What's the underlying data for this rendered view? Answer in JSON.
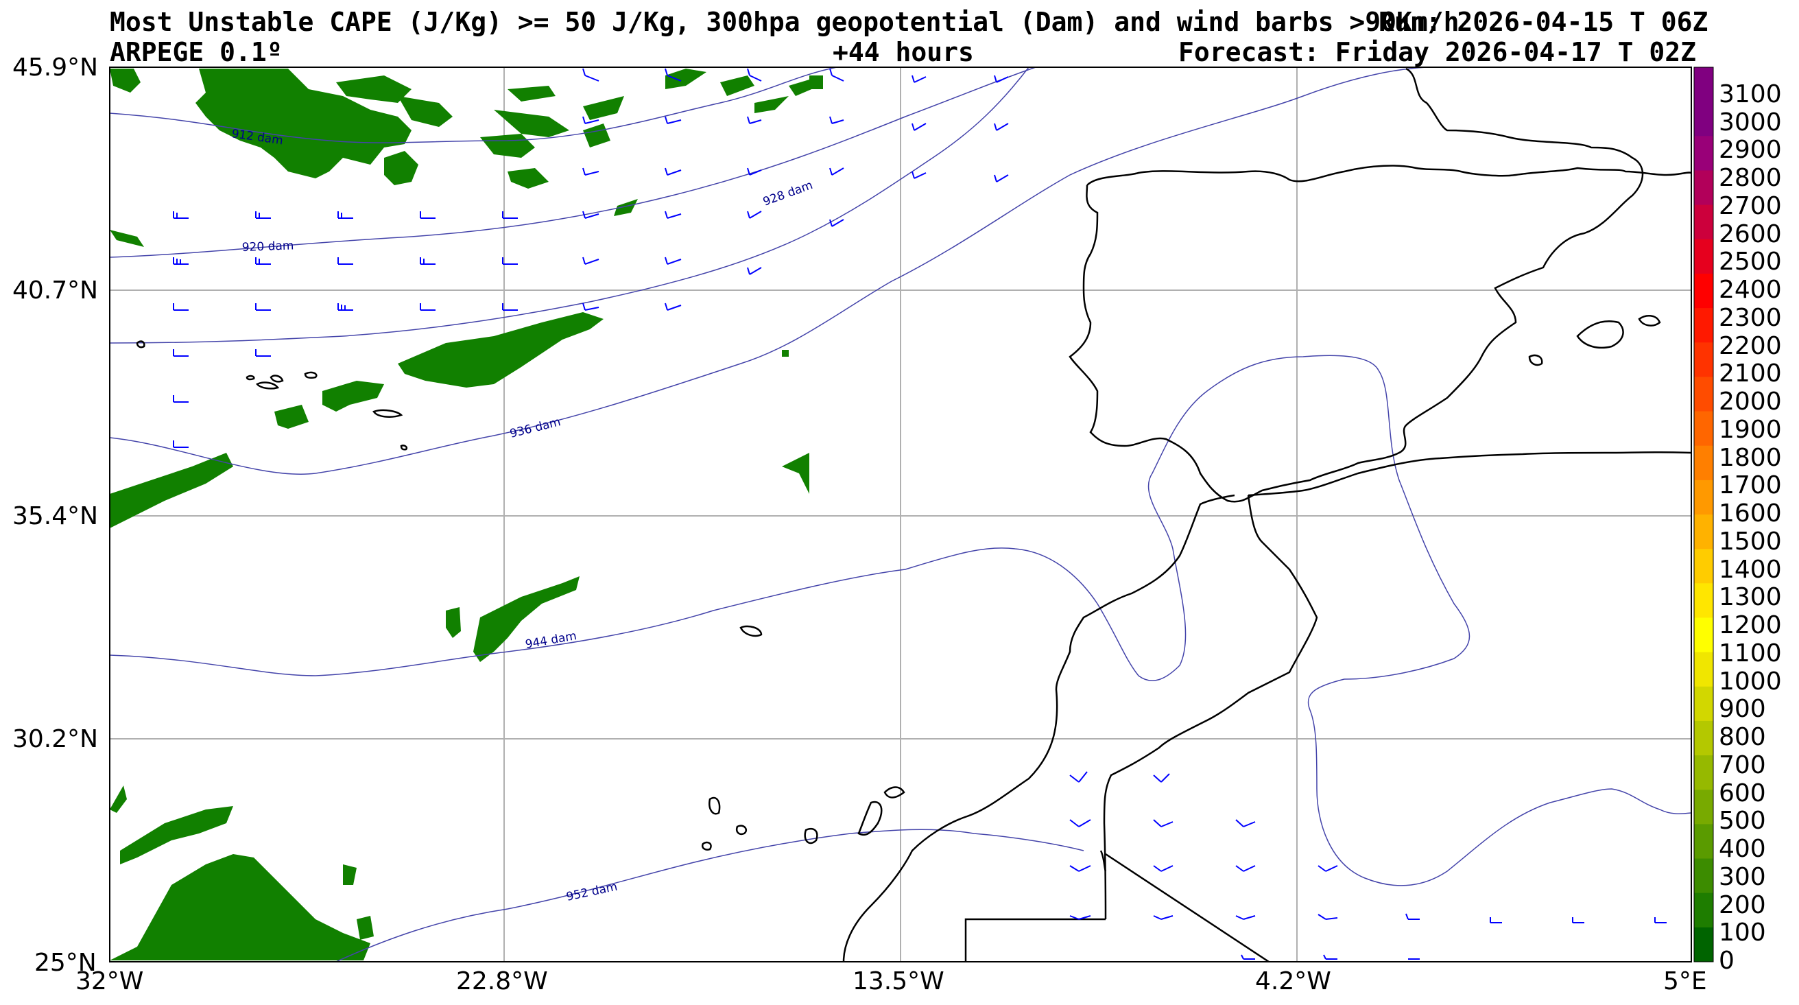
{
  "header": {
    "title": "Most Unstable CAPE (J/Kg) >= 50 J/Kg, 300hpa geopotential (Dam) and wind barbs >90Km/h",
    "run": "Run: 2026-04-15 T 06Z",
    "model": "ARPEGE 0.1º",
    "lead": "+44 hours",
    "forecast": "Forecast: Friday 2026-04-17 T 02Z"
  },
  "axes": {
    "lat_labels": [
      "45.9°N",
      "40.7°N",
      "35.4°N",
      "30.2°N",
      "25°N"
    ],
    "lon_labels": [
      "32°W",
      "22.8°W",
      "13.5°W",
      "4.2°W",
      "5°E"
    ]
  },
  "contours": {
    "labels": [
      "912 dam",
      "920 dam",
      "928 dam",
      "936 dam",
      "944 dam",
      "952 dam"
    ]
  },
  "colorbar": {
    "labels": [
      "3100",
      "3000",
      "2900",
      "2800",
      "2700",
      "2600",
      "2500",
      "2400",
      "2300",
      "2200",
      "2100",
      "2000",
      "1900",
      "1800",
      "1700",
      "1600",
      "1500",
      "1400",
      "1300",
      "1200",
      "1100",
      "1000",
      "900",
      "800",
      "700",
      "600",
      "500",
      "400",
      "300",
      "200",
      "100",
      "0"
    ],
    "colors": [
      "#006400",
      "#1e7d00",
      "#3c8c00",
      "#5a9b00",
      "#78aa00",
      "#96b900",
      "#b4c800",
      "#d2d700",
      "#f0e600",
      "#ffff00",
      "#ffe600",
      "#ffcc00",
      "#ffb200",
      "#ff9900",
      "#ff7f00",
      "#ff6600",
      "#ff4c00",
      "#ff3300",
      "#ff1900",
      "#ff0000",
      "#e6001e",
      "#cc003c",
      "#b2005a",
      "#990078",
      "#800080",
      "#800080"
    ]
  },
  "colors": {
    "cape": "#118000",
    "contour": "#4444aa",
    "contour_label": "#00008b",
    "barb": "#0000ff",
    "coast": "#000000",
    "grid": "#b0b0b0"
  }
}
